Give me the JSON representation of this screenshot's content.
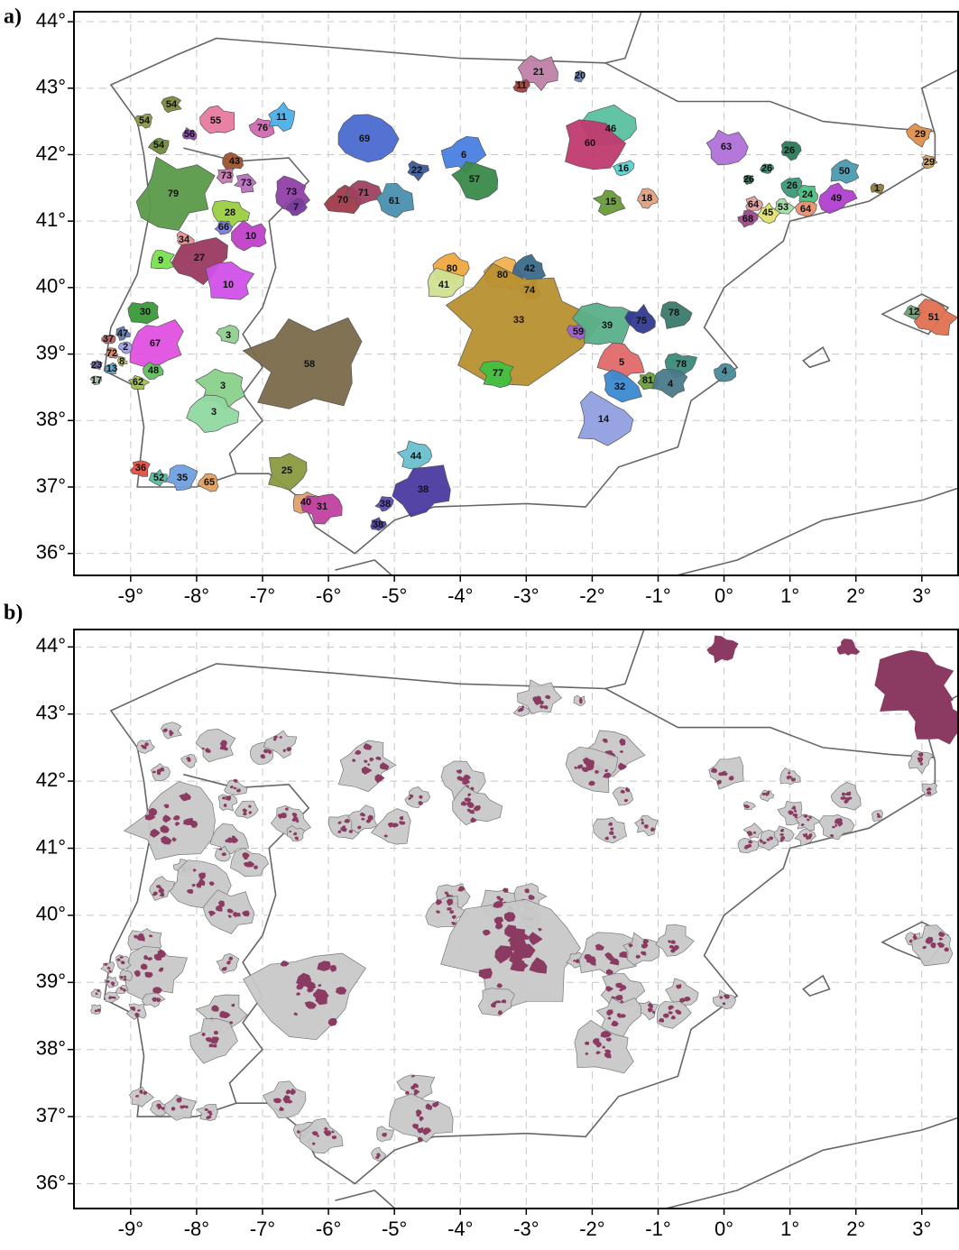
{
  "panels": [
    {
      "label": "a)",
      "xlim": [
        -9.86,
        3.55
      ],
      "ylim": [
        35.67,
        44.15
      ],
      "xticks": [
        {
          "value": -9,
          "label": "-9°"
        },
        {
          "value": -8,
          "label": "-8°"
        },
        {
          "value": -7,
          "label": "-7°"
        },
        {
          "value": -6,
          "label": "-6°"
        },
        {
          "value": -5,
          "label": "-5°"
        },
        {
          "value": -4,
          "label": "-4°"
        },
        {
          "value": -3,
          "label": "-3°"
        },
        {
          "value": -2,
          "label": "-2°"
        },
        {
          "value": -1,
          "label": "-1°"
        },
        {
          "value": 0,
          "label": "0°"
        },
        {
          "value": 1,
          "label": "1°"
        },
        {
          "value": 2,
          "label": "2°"
        },
        {
          "value": 3,
          "label": "3°"
        }
      ],
      "yticks": [
        {
          "value": 36,
          "label": "36°"
        },
        {
          "value": 37,
          "label": "37°"
        },
        {
          "value": 38,
          "label": "38°"
        },
        {
          "value": 39,
          "label": "39°"
        },
        {
          "value": 40,
          "label": "40°"
        },
        {
          "value": 41,
          "label": "41°"
        },
        {
          "value": 42,
          "label": "42°"
        },
        {
          "value": 43,
          "label": "43°"
        },
        {
          "value": 44,
          "label": "44°"
        }
      ],
      "regions": [
        {
          "label": "54",
          "color": "#7a8a3a"
        },
        {
          "label": "54",
          "color": "#8a9a40"
        },
        {
          "label": "54",
          "color": "#6f8a3a"
        },
        {
          "label": "56",
          "color": "#8a4aa8"
        },
        {
          "label": "55",
          "color": "#e87aa0"
        },
        {
          "label": "76",
          "color": "#d06ab0"
        },
        {
          "label": "11",
          "color": "#4ab0e8"
        },
        {
          "label": "43",
          "color": "#a0522d"
        },
        {
          "label": "73",
          "color": "#c47ab0"
        },
        {
          "label": "73",
          "color": "#b870c0"
        },
        {
          "label": "79",
          "color": "#5a9a4a"
        },
        {
          "label": "73",
          "color": "#9040a8"
        },
        {
          "label": "7",
          "color": "#7a3aa0"
        },
        {
          "label": "28",
          "color": "#9ad040"
        },
        {
          "label": "66",
          "color": "#7a7ae0"
        },
        {
          "label": "10",
          "color": "#c040c8"
        },
        {
          "label": "34",
          "color": "#e89090"
        },
        {
          "label": "27",
          "color": "#9a3a60"
        },
        {
          "label": "9",
          "color": "#7ae050"
        },
        {
          "label": "10",
          "color": "#d050e8"
        },
        {
          "label": "69",
          "color": "#4a6ad0"
        },
        {
          "label": "70",
          "color": "#a03a4a"
        },
        {
          "label": "71",
          "color": "#a04060"
        },
        {
          "label": "61",
          "color": "#4a90b0"
        },
        {
          "label": "22",
          "color": "#3a5a9a"
        },
        {
          "label": "6",
          "color": "#4a80e0"
        },
        {
          "label": "57",
          "color": "#3a8a4a"
        },
        {
          "label": "21",
          "color": "#c080a8"
        },
        {
          "label": "11",
          "color": "#a04040"
        },
        {
          "label": "20",
          "color": "#6080c0"
        },
        {
          "label": "46",
          "color": "#5ac0a0"
        },
        {
          "label": "60",
          "color": "#c03a70"
        },
        {
          "label": "16",
          "color": "#5ad0d0"
        },
        {
          "label": "15",
          "color": "#6a9a3a"
        },
        {
          "label": "18",
          "color": "#e0a080"
        },
        {
          "label": "63",
          "color": "#b070d8"
        },
        {
          "label": "26",
          "color": "#2a7a5a"
        },
        {
          "label": "26",
          "color": "#3a8a6a"
        },
        {
          "label": "26",
          "color": "#2a6a4a"
        },
        {
          "label": "26",
          "color": "#3a9a7a"
        },
        {
          "label": "50",
          "color": "#4a9ab0"
        },
        {
          "label": "24",
          "color": "#4ac080"
        },
        {
          "label": "49",
          "color": "#b040d0"
        },
        {
          "label": "1",
          "color": "#8a7a3a"
        },
        {
          "label": "64",
          "color": "#e0a0a0"
        },
        {
          "label": "53",
          "color": "#a0e0a0"
        },
        {
          "label": "64",
          "color": "#e89070"
        },
        {
          "label": "45",
          "color": "#e0e070"
        },
        {
          "label": "68",
          "color": "#9a4a8a"
        },
        {
          "label": "29",
          "color": "#e0904a"
        },
        {
          "label": "29",
          "color": "#d0a060"
        },
        {
          "label": "12",
          "color": "#6aa070"
        },
        {
          "label": "51",
          "color": "#e07050"
        },
        {
          "label": "80",
          "color": "#f0a840"
        },
        {
          "label": "41",
          "color": "#d0e090"
        },
        {
          "label": "80",
          "color": "#f0b050"
        },
        {
          "label": "42",
          "color": "#3a6a8a"
        },
        {
          "label": "74",
          "color": "#b08a40"
        },
        {
          "label": "33",
          "color": "#b89030"
        },
        {
          "label": "59",
          "color": "#9a60d0"
        },
        {
          "label": "39",
          "color": "#5ab08a"
        },
        {
          "label": "75",
          "color": "#303a90"
        },
        {
          "label": "78",
          "color": "#3a7a6a"
        },
        {
          "label": "5",
          "color": "#e06a6a"
        },
        {
          "label": "78",
          "color": "#3a8a7a"
        },
        {
          "label": "81",
          "color": "#6aa03a"
        },
        {
          "label": "4",
          "color": "#4a7a8a"
        },
        {
          "label": "32",
          "color": "#3a8ad0"
        },
        {
          "label": "4",
          "color": "#4a8a9a"
        },
        {
          "label": "14",
          "color": "#90a0e0"
        },
        {
          "label": "77",
          "color": "#40c040"
        },
        {
          "label": "58",
          "color": "#7a6a4a"
        },
        {
          "label": "30",
          "color": "#3a9a3a"
        },
        {
          "label": "67",
          "color": "#e050e0"
        },
        {
          "label": "47",
          "color": "#5a7ab0"
        },
        {
          "label": "37",
          "color": "#c06060"
        },
        {
          "label": "2",
          "color": "#a0a0e0"
        },
        {
          "label": "72",
          "color": "#e08060"
        },
        {
          "label": "8",
          "color": "#c0c060"
        },
        {
          "label": "23",
          "color": "#7060a0"
        },
        {
          "label": "13",
          "color": "#60a0c0"
        },
        {
          "label": "17",
          "color": "#a0c0a0"
        },
        {
          "label": "48",
          "color": "#60c060"
        },
        {
          "label": "62",
          "color": "#a0c050"
        },
        {
          "label": "3",
          "color": "#90d090"
        },
        {
          "label": "3",
          "color": "#8ad08a"
        },
        {
          "label": "3",
          "color": "#90d8a0"
        },
        {
          "label": "25",
          "color": "#8a9a40"
        },
        {
          "label": "44",
          "color": "#6ac0d0"
        },
        {
          "label": "38",
          "color": "#4a3aa0"
        },
        {
          "label": "38",
          "color": "#5a4ab0"
        },
        {
          "label": "38",
          "color": "#4a40a0"
        },
        {
          "label": "40",
          "color": "#e0a070"
        },
        {
          "label": "31",
          "color": "#c040a0"
        },
        {
          "label": "36",
          "color": "#e05040"
        },
        {
          "label": "52",
          "color": "#50c0a0"
        },
        {
          "label": "35",
          "color": "#70a0e0"
        },
        {
          "label": "65",
          "color": "#e0a060"
        }
      ]
    },
    {
      "label": "b)",
      "xlim": [
        -9.86,
        3.55
      ],
      "ylim": [
        35.63,
        44.26
      ],
      "xticks": [
        {
          "value": -9,
          "label": "-9°"
        },
        {
          "value": -8,
          "label": "-8°"
        },
        {
          "value": -7,
          "label": "-7°"
        },
        {
          "value": -6,
          "label": "-6°"
        },
        {
          "value": -5,
          "label": "-5°"
        },
        {
          "value": -4,
          "label": "-4°"
        },
        {
          "value": -3,
          "label": "-3°"
        },
        {
          "value": -2,
          "label": "-2°"
        },
        {
          "value": -1,
          "label": "-1°"
        },
        {
          "value": 0,
          "label": "0°"
        },
        {
          "value": 1,
          "label": "1°"
        },
        {
          "value": 2,
          "label": "2°"
        },
        {
          "value": 3,
          "label": "3°"
        }
      ],
      "yticks": [
        {
          "value": 36,
          "label": "36°"
        },
        {
          "value": 37,
          "label": "37°"
        },
        {
          "value": 38,
          "label": "38°"
        },
        {
          "value": 39,
          "label": "39°"
        },
        {
          "value": 40,
          "label": "40°"
        },
        {
          "value": 41,
          "label": "41°"
        },
        {
          "value": 42,
          "label": "42°"
        },
        {
          "value": 43,
          "label": "43°"
        },
        {
          "value": 44,
          "label": "44°"
        }
      ],
      "fill": "#c8c8c8",
      "hotspot": "#8b3a62"
    }
  ]
}
